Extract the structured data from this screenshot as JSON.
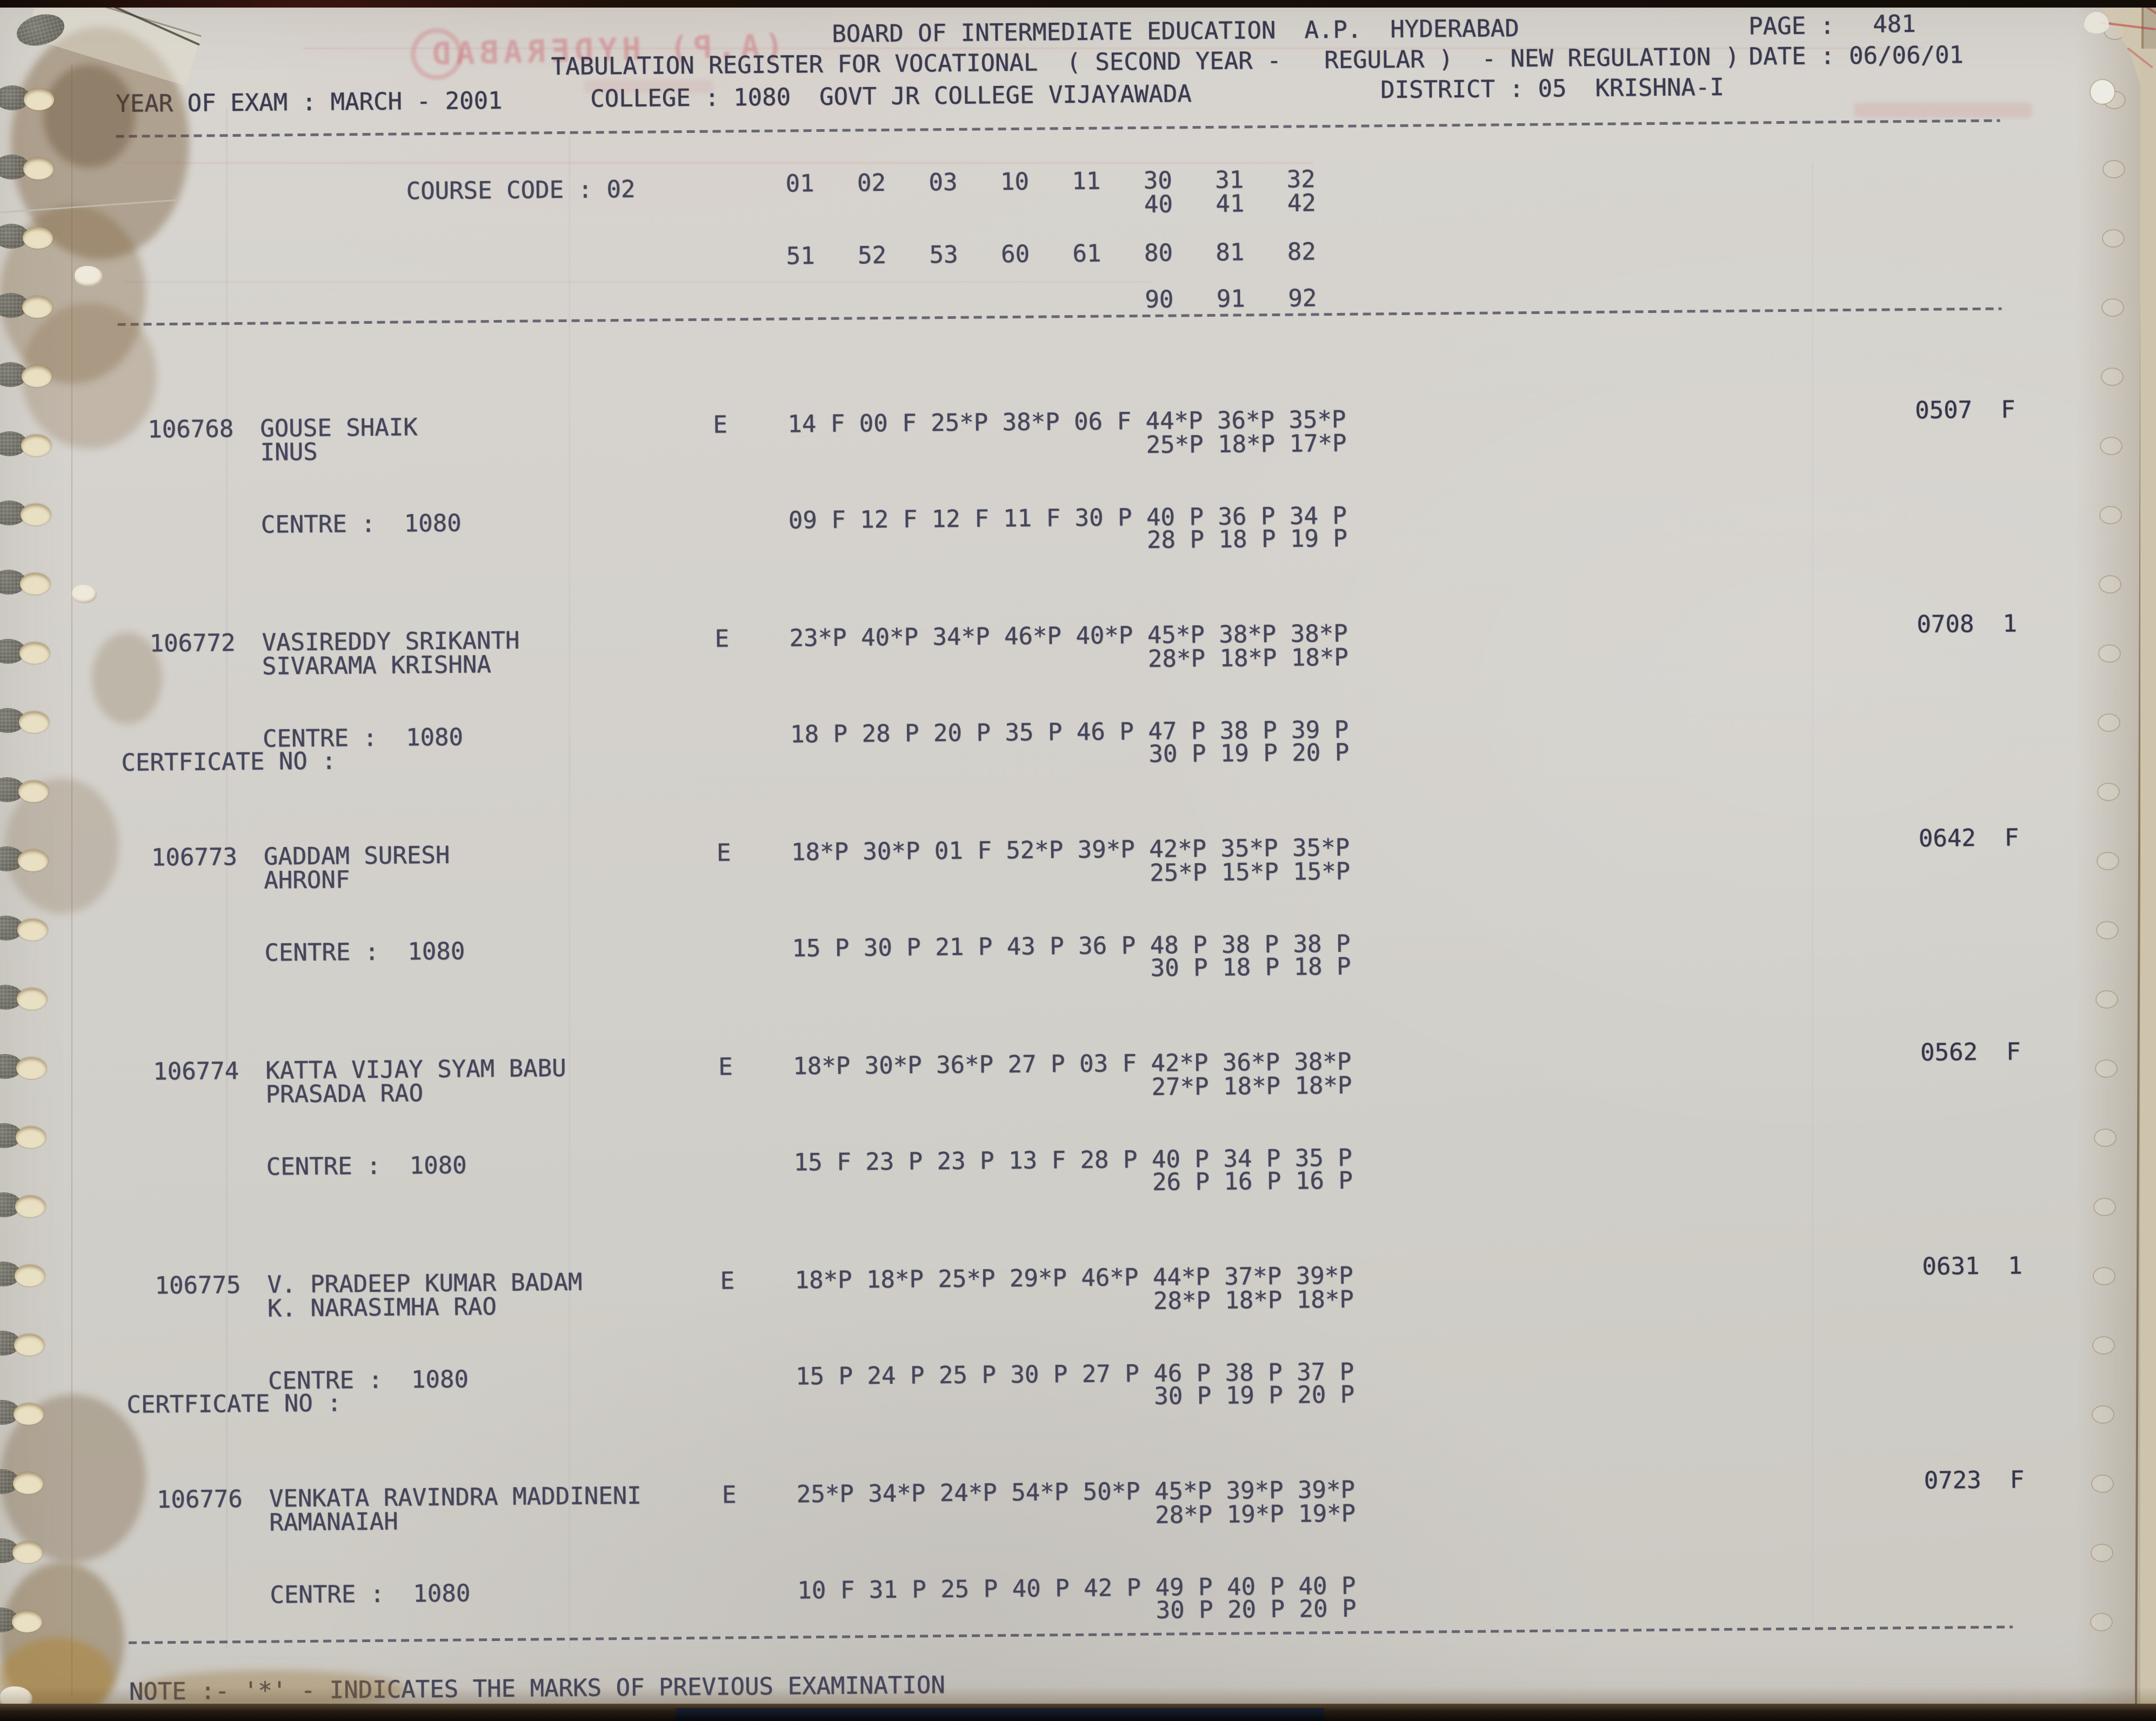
{
  "document": {
    "header": {
      "board_line": "BOARD OF INTERMEDIATE EDUCATION  A.P.  HYDERABAD",
      "page_label": "PAGE :",
      "page_number": "481",
      "register_line": "TABULATION REGISTER FOR VOCATIONAL  ( SECOND YEAR -   REGULAR )  - NEW REGULATION )",
      "date_line": "DATE : 06/06/01",
      "year_line": "YEAR OF EXAM : MARCH - 2001",
      "college_line": "COLLEGE : 1080  GOVT JR COLLEGE VIJAYAWADA",
      "district_line": "DISTRICT : 05  KRISHNA-I"
    },
    "course": {
      "course_code_line": "COURSE CODE : 02",
      "subject_code_rows": [
        "01   02   03   10   11   30   31   32",
        "40   41   42",
        "51   52   53   60   61   80   81   82",
        "90   91   92"
      ]
    },
    "students": [
      {
        "roll": "106768",
        "name_line1": "GOUSE SHAIK",
        "name_line2": "INUS",
        "medium": "E",
        "marks_line1": "14 F 00 F 25*P 38*P 06 F 44*P 36*P 35*P",
        "marks_line2": "25*P 18*P 17*P",
        "centre_line": "CENTRE :  1080",
        "certificate_line": "",
        "marks_line3": "09 F 12 F 12 F 11 F 30 P 40 P 36 P 34 P",
        "marks_line4": "28 P 18 P 19 P",
        "result": "0507  F"
      },
      {
        "roll": "106772",
        "name_line1": "VASIREDDY SRIKANTH",
        "name_line2": "SIVARAMA KRISHNA",
        "medium": "E",
        "marks_line1": "23*P 40*P 34*P 46*P 40*P 45*P 38*P 38*P",
        "marks_line2": "28*P 18*P 18*P",
        "centre_line": "CENTRE :  1080",
        "certificate_line": "CERTFICATE NO :",
        "marks_line3": "18 P 28 P 20 P 35 P 46 P 47 P 38 P 39 P",
        "marks_line4": "30 P 19 P 20 P",
        "result": "0708  1"
      },
      {
        "roll": "106773",
        "name_line1": "GADDAM SURESH",
        "name_line2": "AHRONF",
        "medium": "E",
        "marks_line1": "18*P 30*P 01 F 52*P 39*P 42*P 35*P 35*P",
        "marks_line2": "25*P 15*P 15*P",
        "centre_line": "CENTRE :  1080",
        "certificate_line": "",
        "marks_line3": "15 P 30 P 21 P 43 P 36 P 48 P 38 P 38 P",
        "marks_line4": "30 P 18 P 18 P",
        "result": "0642  F"
      },
      {
        "roll": "106774",
        "name_line1": "KATTA VIJAY SYAM BABU",
        "name_line2": "PRASADA RAO",
        "medium": "E",
        "marks_line1": "18*P 30*P 36*P 27 P 03 F 42*P 36*P 38*P",
        "marks_line2": "27*P 18*P 18*P",
        "centre_line": "CENTRE :  1080",
        "certificate_line": "",
        "marks_line3": "15 F 23 P 23 P 13 F 28 P 40 P 34 P 35 P",
        "marks_line4": "26 P 16 P 16 P",
        "result": "0562  F"
      },
      {
        "roll": "106775",
        "name_line1": "V. PRADEEP KUMAR BADAM",
        "name_line2": "K. NARASIMHA RAO",
        "medium": "E",
        "marks_line1": "18*P 18*P 25*P 29*P 46*P 44*P 37*P 39*P",
        "marks_line2": "28*P 18*P 18*P",
        "centre_line": "CENTRE :  1080",
        "certificate_line": "CERTFICATE NO :",
        "marks_line3": "15 P 24 P 25 P 30 P 27 P 46 P 38 P 37 P",
        "marks_line4": "30 P 19 P 20 P",
        "result": "0631  1"
      },
      {
        "roll": "106776",
        "name_line1": "VENKATA RAVINDRA MADDINENI",
        "name_line2": "RAMANAIAH",
        "medium": "E",
        "marks_line1": "25*P 34*P 24*P 54*P 50*P 45*P 39*P 39*P",
        "marks_line2": "28*P 19*P 19*P",
        "centre_line": "CENTRE :  1080",
        "certificate_line": "",
        "marks_line3": "10 F 31 P 25 P 40 P 42 P 49 P 40 P 40 P",
        "marks_line4": "30 P 20 P 20 P",
        "result": "0723  F"
      }
    ],
    "footer_note": "NOTE :- '*' - INDICATES THE MARKS OF PREVIOUS EXAMINATION",
    "ghost_backprint": "(A.P) HYDERABAD",
    "ink_color": "#45455a",
    "paper_color": "#d3d0cb"
  }
}
